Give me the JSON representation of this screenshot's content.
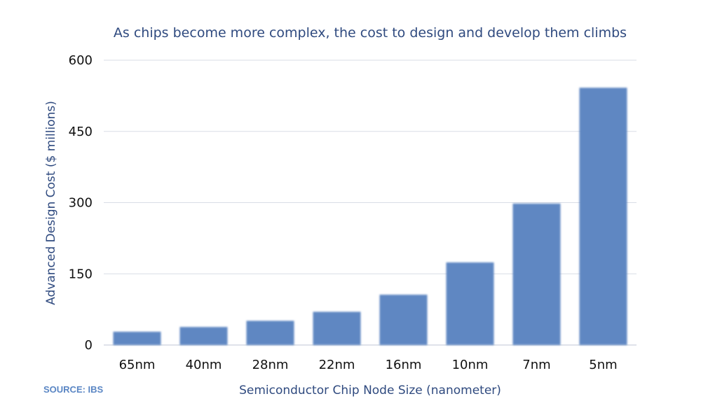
{
  "chart_data": {
    "type": "bar",
    "title": "As chips become more complex, the cost to design and develop them climbs",
    "xlabel": "Semiconductor Chip Node Size (nanometer)",
    "ylabel": "Advanced Design Cost ($ millions)",
    "categories": [
      "65nm",
      "40nm",
      "28nm",
      "22nm",
      "16nm",
      "10nm",
      "7nm",
      "5nm"
    ],
    "values": [
      28,
      38,
      51,
      70,
      106,
      174,
      298,
      542
    ],
    "ylim": [
      0,
      600
    ],
    "yticks": [
      "0",
      "150",
      "300",
      "450",
      "600"
    ],
    "grid": true,
    "bar_color": "#5e87c2",
    "source": "SOURCE: IBS"
  }
}
